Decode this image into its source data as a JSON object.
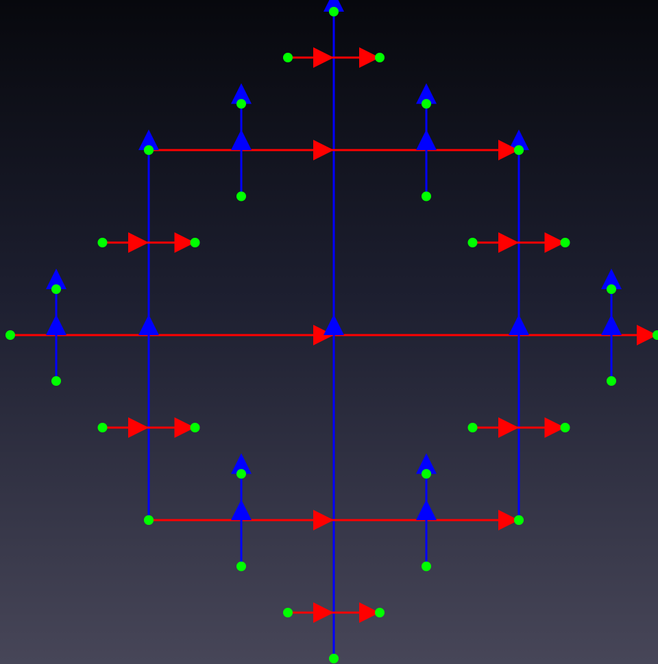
{
  "diagram": {
    "kind": "fractal-cross-tree",
    "background_colors": [
      "#07080d",
      "#1d1f30",
      "#474658"
    ],
    "colors": {
      "horizontal_edge": "#ff0000",
      "vertical_edge": "#0000ff",
      "leaf_node": "#00ff00"
    },
    "levels": 4,
    "root_direction_horizontal": "right",
    "root_direction_vertical": "up"
  }
}
